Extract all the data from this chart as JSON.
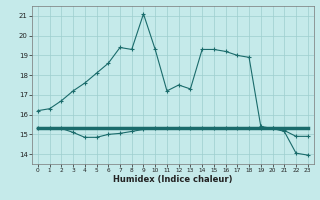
{
  "xlabel": "Humidex (Indice chaleur)",
  "bg_color": "#c5eaea",
  "grid_color": "#9ecece",
  "line_color": "#1a6b6b",
  "xlim": [
    -0.5,
    23.5
  ],
  "ylim": [
    13.5,
    21.5
  ],
  "xticks": [
    0,
    1,
    2,
    3,
    4,
    5,
    6,
    7,
    8,
    9,
    10,
    11,
    12,
    13,
    14,
    15,
    16,
    17,
    18,
    19,
    20,
    21,
    22,
    23
  ],
  "yticks": [
    14,
    15,
    16,
    17,
    18,
    19,
    20,
    21
  ],
  "line1_x": [
    0,
    1,
    2,
    3,
    4,
    5,
    6,
    7,
    8,
    9,
    10,
    11,
    12,
    13,
    14,
    15,
    16,
    17,
    18,
    19,
    20,
    21,
    22,
    23
  ],
  "line1_y": [
    16.2,
    16.3,
    16.7,
    17.2,
    17.6,
    18.1,
    18.6,
    19.4,
    19.3,
    21.1,
    19.3,
    17.2,
    17.5,
    17.3,
    19.3,
    19.3,
    19.2,
    19.0,
    18.9,
    15.4,
    15.3,
    15.2,
    14.9,
    14.9
  ],
  "line2_x": [
    0,
    1,
    2,
    3,
    4,
    5,
    6,
    7,
    8,
    9,
    10,
    11,
    12,
    13,
    14,
    15,
    16,
    17,
    18,
    19,
    20,
    21,
    22,
    23
  ],
  "line2_y": [
    15.3,
    15.3,
    15.3,
    15.1,
    14.85,
    14.85,
    15.0,
    15.05,
    15.15,
    15.25,
    15.3,
    15.3,
    15.3,
    15.3,
    15.3,
    15.3,
    15.3,
    15.3,
    15.3,
    15.3,
    15.3,
    15.15,
    14.05,
    13.95
  ],
  "line3_x": [
    0,
    20,
    23
  ],
  "line3_y": [
    15.3,
    15.3,
    15.3
  ]
}
